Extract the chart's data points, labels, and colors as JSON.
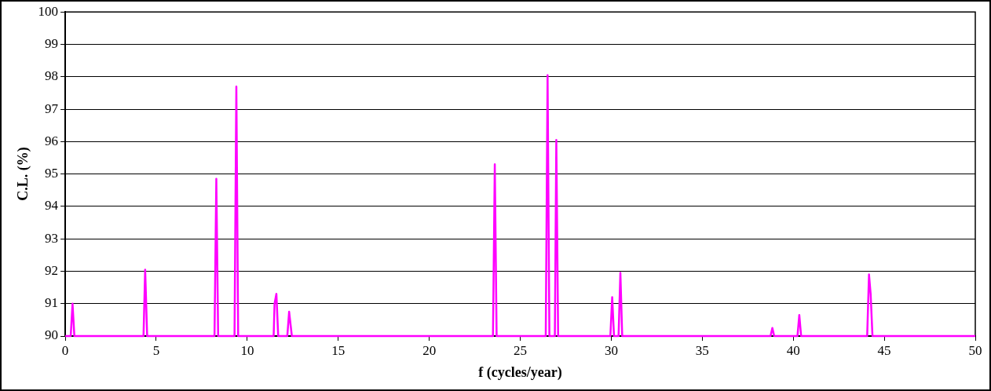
{
  "chart_data": {
    "type": "line",
    "xlabel": "f (cycles/year)",
    "ylabel": "C.L. (%)",
    "x": [
      0,
      0.3,
      0.4,
      0.5,
      4.3,
      4.39,
      4.5,
      8.2,
      8.3,
      8.4,
      9.3,
      9.4,
      9.5,
      11.45,
      11.5,
      11.6,
      11.7,
      12.2,
      12.3,
      12.45,
      23.5,
      23.6,
      23.7,
      26.4,
      26.5,
      26.6,
      26.9,
      26.98,
      27.08,
      29.95,
      30.05,
      30.15,
      30.4,
      30.5,
      30.6,
      38.75,
      38.85,
      38.95,
      40.23,
      40.33,
      40.43,
      44.06,
      44.16,
      44.25,
      44.35,
      50
    ],
    "series": [
      {
        "color": "#ff00ff",
        "values": [
          90,
          90,
          91.0,
          90,
          90,
          92.05,
          90,
          90,
          94.85,
          90,
          90,
          97.7,
          90,
          90,
          91.0,
          91.3,
          90,
          90,
          90.75,
          90,
          90,
          95.3,
          90,
          90,
          98.05,
          90,
          90,
          96.05,
          90,
          90,
          91.2,
          90,
          90,
          91.95,
          90,
          90,
          90.25,
          90,
          90,
          90.65,
          90,
          90,
          91.9,
          91.3,
          90,
          90
        ]
      }
    ],
    "xlim": [
      0,
      50
    ],
    "xticks": [
      0,
      5,
      10,
      15,
      20,
      25,
      30,
      35,
      40,
      45,
      50
    ],
    "ylim": [
      90,
      100
    ],
    "yticks": [
      90,
      91,
      92,
      93,
      94,
      95,
      96,
      97,
      98,
      99,
      100
    ],
    "grid": "y",
    "legend": false,
    "marker": "none",
    "line_style": "solid"
  }
}
